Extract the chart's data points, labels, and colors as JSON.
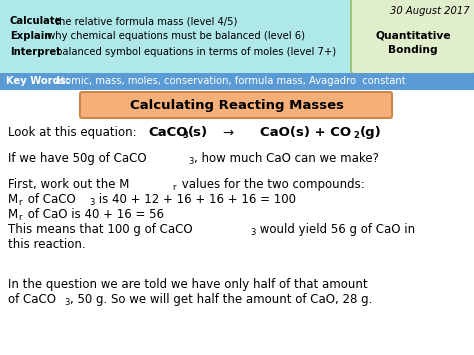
{
  "bg_color": "#ffffff",
  "header_bg": "#aee8e8",
  "header_box2_bg": "#e0eecc",
  "keywords_bg": "#5b9bd5",
  "title_box_bg": "#f5b07a",
  "title_box_border": "#cc8844",
  "date": "30 August 2017",
  "box2_line1": "Quantitative",
  "box2_line2": "Bonding",
  "obj_bold": [
    "Calculate",
    "Explain",
    "Interpret"
  ],
  "obj_normal": [
    " the relative formula mass (level 4/5)",
    " why chemical equations must be balanced (level 6)",
    " balanced symbol equations in terms of moles (level 7+)"
  ],
  "keywords_label": "Key Words:",
  "keywords_text": " atomic, mass, moles, conservation, formula mass, Avagadro  constant",
  "title": "Calculating Reacting Masses",
  "fs_header": 7.2,
  "fs_kw": 7.2,
  "fs_title": 9.5,
  "fs_body": 8.5
}
